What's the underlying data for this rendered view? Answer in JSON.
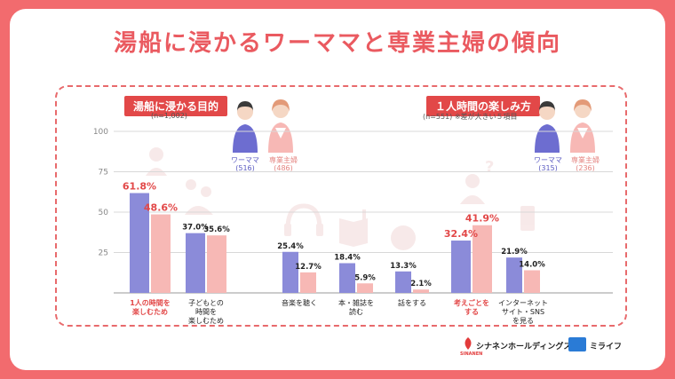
{
  "title": "湯船に浸かるワーママと専業主婦の傾向",
  "colors": {
    "working_mom": "#8b8bd9",
    "housewife": "#f7b8b5",
    "accent": "#e24848",
    "background": "#f26b6e"
  },
  "left_panel": {
    "heading": "湯船に浸かる目的",
    "sample": "(n=1,002)",
    "legend": [
      {
        "name": "ワーママ",
        "n": "(516)"
      },
      {
        "name": "専業主婦",
        "n": "(486)"
      }
    ]
  },
  "right_panel": {
    "heading": "１人時間の楽しみ方",
    "sample": "(n=551) ※差が大きい５項目",
    "legend": [
      {
        "name": "ワーママ",
        "n": "(315)"
      },
      {
        "name": "専業主婦",
        "n": "(236)"
      }
    ]
  },
  "chart_data": {
    "type": "bar",
    "ylim": [
      0,
      100
    ],
    "yticks": [
      "100",
      "75",
      "50",
      "25"
    ],
    "series": [
      "ワーママ",
      "専業主婦"
    ],
    "groups": [
      {
        "label": [
          "1人の時間を",
          "楽しむため"
        ],
        "values": [
          61.8,
          48.6
        ],
        "labels": [
          "61.8%",
          "48.6%"
        ],
        "highlight": true
      },
      {
        "label": [
          "子どもとの",
          "時間を",
          "楽しむため"
        ],
        "values": [
          37.0,
          35.6
        ],
        "labels": [
          "37.0%",
          "35.6%"
        ],
        "highlight": false
      },
      {
        "label": [
          "音楽を聴く"
        ],
        "values": [
          25.4,
          12.7
        ],
        "labels": [
          "25.4%",
          "12.7%"
        ],
        "highlight": false
      },
      {
        "label": [
          "本・雑誌を",
          "読む"
        ],
        "values": [
          18.4,
          5.9
        ],
        "labels": [
          "18.4%",
          "5.9%"
        ],
        "highlight": false
      },
      {
        "label": [
          "話をする"
        ],
        "values": [
          13.3,
          2.1
        ],
        "labels": [
          "13.3%",
          "2.1%"
        ],
        "highlight": false
      },
      {
        "label": [
          "考えごとを",
          "する"
        ],
        "values": [
          32.4,
          41.9
        ],
        "labels": [
          "32.4%",
          "41.9%"
        ],
        "highlight": true
      },
      {
        "label": [
          "インターネット",
          "サイト・SNS",
          "を見る"
        ],
        "values": [
          21.9,
          14.0
        ],
        "labels": [
          "21.9%",
          "14.0%"
        ],
        "highlight": false
      }
    ]
  },
  "footer": {
    "logo1": "シナネンホールディングス",
    "logo1_sub": "SINANEN",
    "logo2": "ミライフ"
  }
}
